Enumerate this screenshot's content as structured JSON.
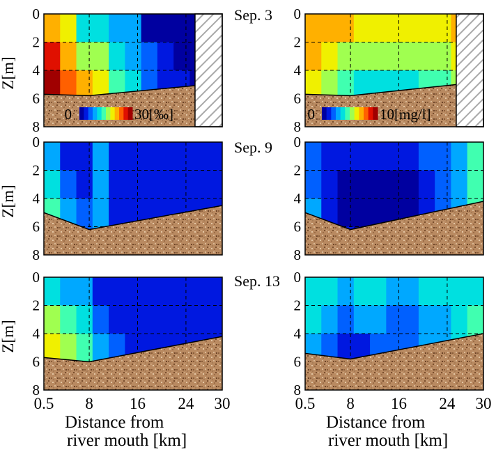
{
  "chart_data": {
    "type": "heatmap",
    "xlabel": "Distance from river mouth [km]",
    "ylabel": "Z[m]",
    "xticks": [
      "0.5",
      "8",
      "16",
      "24",
      "30"
    ],
    "yticks": [
      "0",
      "2",
      "4",
      "6",
      "8"
    ],
    "xlim": [
      0.5,
      30
    ],
    "ylim": [
      8,
      0
    ],
    "colors": {
      "riverbed": "#b98a61",
      "cmap": [
        "#0000a0",
        "#0018e0",
        "#0060ff",
        "#00a8ff",
        "#00e0e0",
        "#40ffb0",
        "#a0ff50",
        "#f0f000",
        "#ffb000",
        "#ff6000",
        "#e01000",
        "#a00000"
      ]
    },
    "colorbars": [
      {
        "min": "0",
        "max": "30[‰]"
      },
      {
        "min": "0",
        "max": "10[mg/l]"
      }
    ],
    "dates": [
      "Sep. 3",
      "Sep. 9",
      "Sep. 13"
    ],
    "panels": [
      {
        "date": "Sep. 3",
        "column": "left",
        "bed": [
          [
            0.5,
            5.7
          ],
          [
            8,
            5.8
          ],
          [
            30,
            4.9
          ]
        ],
        "hatched_from": 25.5,
        "levels": [
          [
            8,
            7,
            4,
            4,
            3,
            3,
            0,
            0,
            0,
            0,
            0
          ],
          [
            10,
            8,
            6,
            6,
            4,
            3,
            2,
            1,
            0,
            0,
            0
          ],
          [
            11,
            9,
            8,
            7,
            5,
            4,
            2,
            1,
            1,
            0,
            0
          ],
          [
            11,
            10,
            9,
            7,
            6,
            4,
            3,
            1,
            0,
            0,
            0
          ]
        ]
      },
      {
        "date": "Sep. 3",
        "column": "right",
        "bed": [
          [
            0.5,
            5.7
          ],
          [
            8,
            5.8
          ],
          [
            30,
            4.8
          ]
        ],
        "hatched_from": 25.5,
        "levels": [
          [
            8,
            8,
            8,
            7,
            7,
            7,
            7,
            7,
            7,
            8,
            8
          ],
          [
            8,
            7,
            6,
            6,
            6,
            6,
            6,
            6,
            6,
            7,
            7
          ],
          [
            7,
            6,
            5,
            4,
            4,
            4,
            4,
            5,
            5,
            6,
            6
          ],
          [
            6,
            5,
            4,
            3,
            2,
            2,
            3,
            4,
            4,
            5,
            5
          ]
        ]
      },
      {
        "date": "Sep. 9",
        "column": "left",
        "bed": [
          [
            0.5,
            5.0
          ],
          [
            8,
            6.2
          ],
          [
            30,
            4.5
          ]
        ],
        "levels": [
          [
            3,
            1,
            1,
            3,
            1,
            1,
            1,
            1,
            1,
            1,
            1
          ],
          [
            4,
            2,
            1,
            3,
            1,
            1,
            1,
            1,
            1,
            1,
            1
          ],
          [
            5,
            3,
            2,
            3,
            1,
            1,
            1,
            1,
            1,
            1,
            1
          ],
          [
            6,
            4,
            2,
            3,
            1,
            1,
            1,
            1,
            1,
            1,
            1
          ]
        ]
      },
      {
        "date": "Sep. 9",
        "column": "right",
        "bed": [
          [
            0.5,
            5.0
          ],
          [
            8,
            6.2
          ],
          [
            30,
            4.2
          ]
        ],
        "levels": [
          [
            2,
            1,
            1,
            1,
            1,
            1,
            1,
            2,
            2,
            3,
            5
          ],
          [
            2,
            1,
            0,
            0,
            0,
            0,
            0,
            1,
            2,
            3,
            5
          ],
          [
            3,
            1,
            0,
            0,
            0,
            0,
            0,
            1,
            2,
            3,
            5
          ],
          [
            3,
            2,
            1,
            0,
            0,
            0,
            0,
            1,
            2,
            3,
            4
          ]
        ]
      },
      {
        "date": "Sep. 13",
        "column": "left",
        "bed": [
          [
            0.5,
            5.7
          ],
          [
            8,
            6.0
          ],
          [
            30,
            4.2
          ]
        ],
        "levels": [
          [
            4,
            3,
            3,
            1,
            1,
            1,
            1,
            1,
            1,
            1,
            1
          ],
          [
            6,
            5,
            4,
            2,
            1,
            1,
            1,
            1,
            1,
            1,
            1
          ],
          [
            7,
            6,
            5,
            3,
            2,
            1,
            1,
            1,
            1,
            1,
            1
          ],
          [
            8,
            7,
            6,
            4,
            2,
            1,
            1,
            1,
            1,
            1,
            1
          ]
        ]
      },
      {
        "date": "Sep. 13",
        "column": "right",
        "bed": [
          [
            0.5,
            5.4
          ],
          [
            8,
            5.8
          ],
          [
            30,
            4.0
          ]
        ],
        "levels": [
          [
            4,
            4,
            3,
            4,
            4,
            3,
            3,
            4,
            4,
            4,
            4
          ],
          [
            4,
            3,
            2,
            3,
            3,
            2,
            2,
            3,
            3,
            4,
            5
          ],
          [
            3,
            2,
            1,
            1,
            2,
            2,
            2,
            3,
            3,
            4,
            5
          ],
          [
            3,
            2,
            1,
            0,
            1,
            2,
            2,
            3,
            3,
            4,
            5
          ]
        ]
      }
    ]
  }
}
